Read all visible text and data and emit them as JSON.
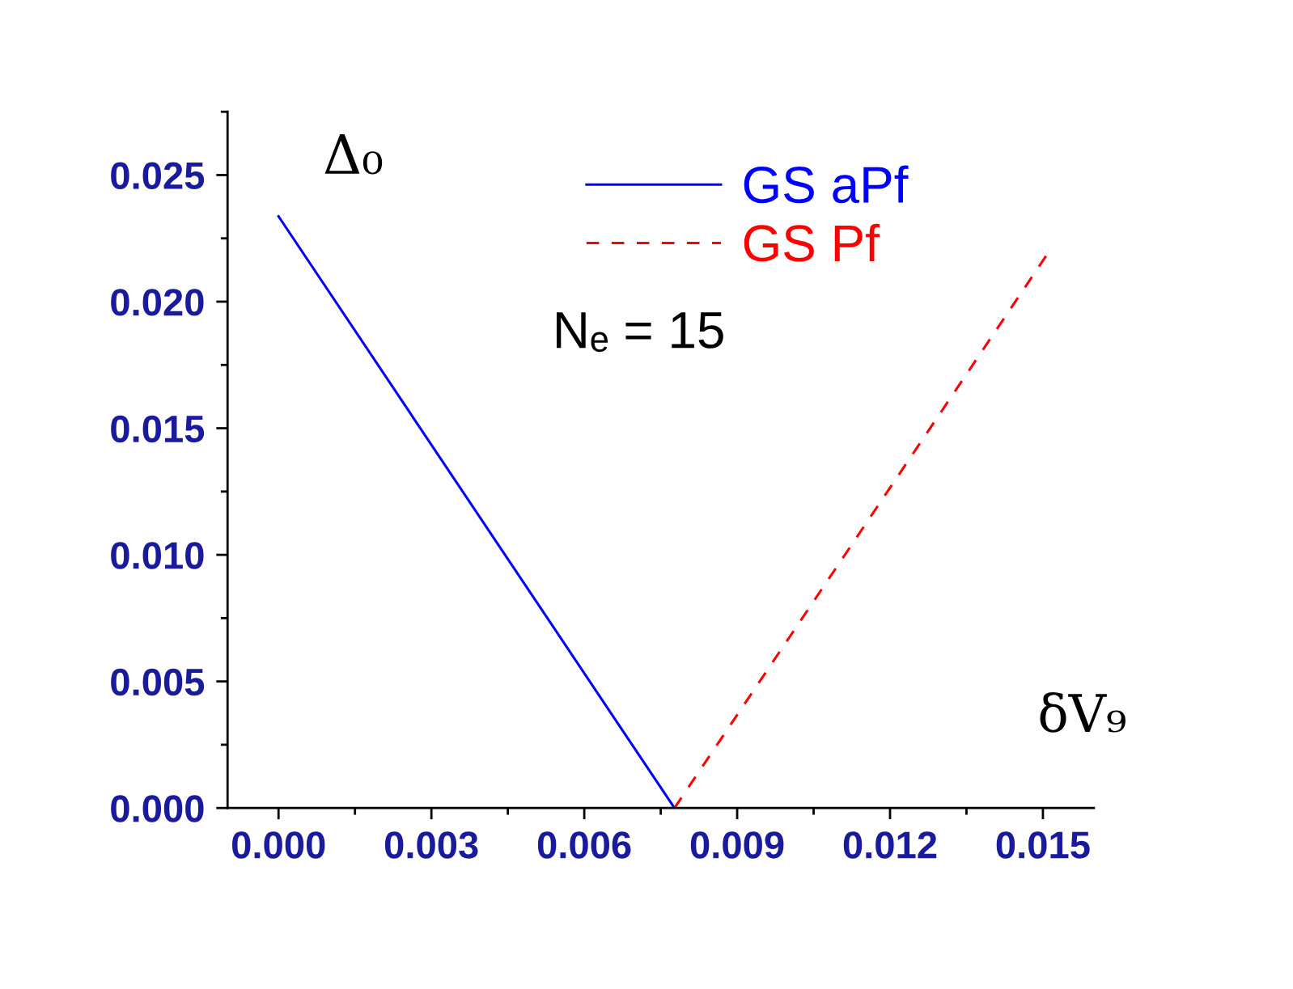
{
  "chart_data": {
    "type": "line",
    "xlabel": "δV₉",
    "ylabel": "Δ₀",
    "series": [
      {
        "name": "GS aPf",
        "color": "#0000ff",
        "x": [
          0.0,
          0.00777
        ],
        "values": [
          0.02337,
          0.0
        ],
        "line_style": "solid"
      },
      {
        "name": "GS Pf",
        "color": "#ff0000",
        "x": [
          0.00777,
          0.01506
        ],
        "values": [
          0.0,
          0.0218
        ],
        "line_style": "dashed"
      }
    ],
    "xlim": [
      -0.001,
      0.016
    ],
    "xticks": [
      {
        "value": 0,
        "label": "0.000"
      },
      {
        "value": 0.003,
        "label": "0.003"
      },
      {
        "value": 0.006,
        "label": "0.006"
      },
      {
        "value": 0.009,
        "label": "0.009"
      },
      {
        "value": 0.012,
        "label": "0.012"
      },
      {
        "value": 0.015,
        "label": "0.015"
      }
    ],
    "ylim": [
      0,
      0.0275
    ],
    "yticks": [
      {
        "value": 0,
        "label": "0.000"
      },
      {
        "value": 0.005,
        "label": "0.005"
      },
      {
        "value": 0.01,
        "label": "0.010"
      },
      {
        "value": 0.015,
        "label": "0.015"
      },
      {
        "value": 0.02,
        "label": "0.020"
      },
      {
        "value": 0.025,
        "label": "0.025"
      }
    ],
    "annotations": [
      "Nₑ = 15"
    ],
    "legend": "top",
    "grid": false,
    "marker": "none"
  }
}
